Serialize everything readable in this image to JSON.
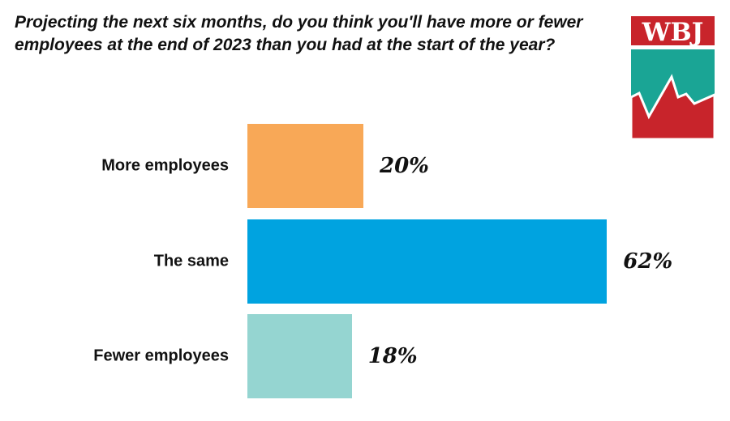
{
  "chart_data": {
    "type": "bar",
    "orientation": "horizontal",
    "title": "Projecting the next six months, do you think you'll have more or fewer employees at the end of 2023 than you had at the start of the year?",
    "categories": [
      "More employees",
      "The same",
      "Fewer employees"
    ],
    "values": [
      20,
      62,
      18
    ],
    "value_labels": [
      "20%",
      "62%",
      "18%"
    ],
    "colors": [
      "#f8a857",
      "#00a3e0",
      "#95d5d1"
    ],
    "xlim": [
      0,
      100
    ],
    "grid": false
  },
  "logo": {
    "text": "WBJ",
    "red": "#c8242b",
    "teal": "#1aa595"
  }
}
